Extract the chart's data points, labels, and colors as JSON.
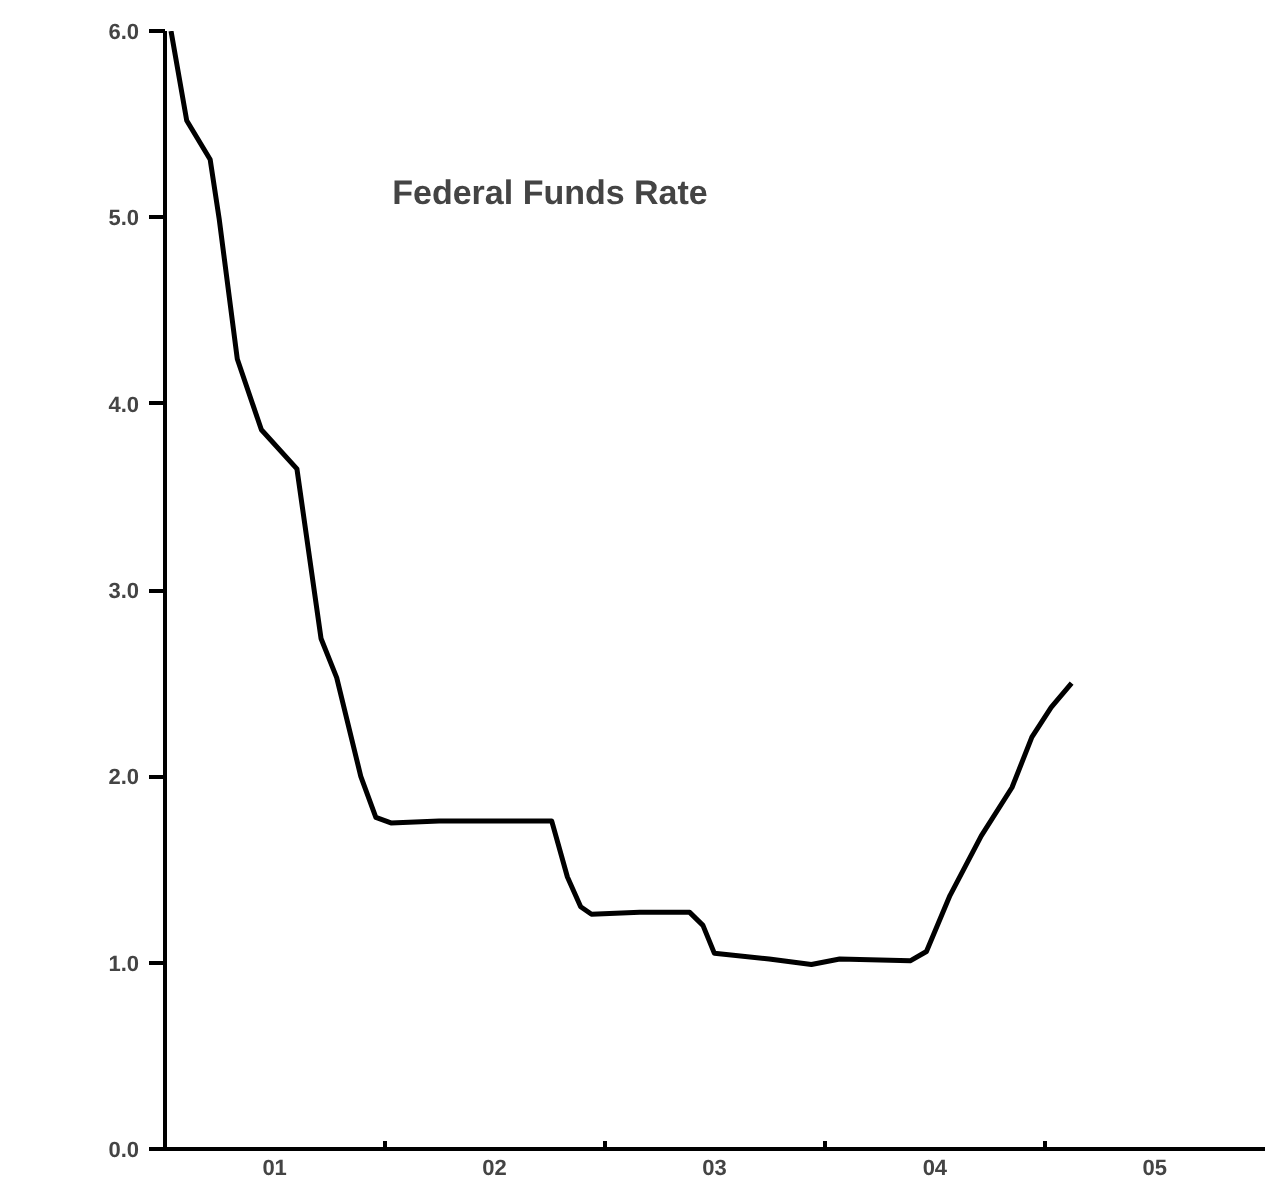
{
  "chart_data": {
    "type": "line",
    "title": "Federal Funds Rate",
    "x": [
      "2001-01-11",
      "2001-02-06",
      "2001-03-17",
      "2001-04-01",
      "2001-05-01",
      "2001-06-10",
      "2001-08-08",
      "2001-09-17",
      "2001-10-13",
      "2001-11-22",
      "2001-12-17",
      "2002-01-11",
      "2002-04-01",
      "2002-09-17",
      "2002-10-05",
      "2002-10-31",
      "2002-11-22",
      "2002-12-10",
      "2003-02-28",
      "2003-05-22",
      "2003-06-13",
      "2003-07-02",
      "2003-10-01",
      "2003-12-10",
      "2004-01-26",
      "2004-05-22",
      "2004-06-18",
      "2004-07-27",
      "2004-09-17",
      "2004-11-07",
      "2004-12-10",
      "2005-01-11",
      "2005-02-14"
    ],
    "series": [
      {
        "color": "#000000",
        "values": [
          6.0,
          5.52,
          5.31,
          4.99,
          4.24,
          3.86,
          3.65,
          2.74,
          2.53,
          2.0,
          1.78,
          1.75,
          1.76,
          1.76,
          1.76,
          1.46,
          1.3,
          1.26,
          1.27,
          1.27,
          1.2,
          1.05,
          1.02,
          0.99,
          1.02,
          1.01,
          1.06,
          1.36,
          1.68,
          1.94,
          2.21,
          2.37,
          2.5
        ]
      }
    ],
    "xlim": [
      "2001-01-01",
      "2006-01-01"
    ],
    "ylim": [
      0,
      6
    ],
    "xticks": [
      {
        "value": "2001-07-02",
        "label": "01"
      },
      {
        "value": "2002-01-01",
        "label": null
      },
      {
        "value": "2002-07-02",
        "label": "02"
      },
      {
        "value": "2003-01-01",
        "label": null
      },
      {
        "value": "2003-07-02",
        "label": "03"
      },
      {
        "value": "2004-01-01",
        "label": null
      },
      {
        "value": "2004-07-02",
        "label": "04"
      },
      {
        "value": "2005-01-01",
        "label": null
      },
      {
        "value": "2005-07-02",
        "label": "05"
      }
    ],
    "yticks": [
      {
        "value": 0,
        "label": "0.0"
      },
      {
        "value": 1,
        "label": "1.0"
      },
      {
        "value": 2,
        "label": "2.0"
      },
      {
        "value": 3,
        "label": "3.0"
      },
      {
        "value": 4,
        "label": "4.0"
      },
      {
        "value": 5,
        "label": "5.0"
      },
      {
        "value": 6,
        "label": "6.0"
      }
    ],
    "grid": false,
    "marker": "none",
    "line_style": "solid"
  }
}
